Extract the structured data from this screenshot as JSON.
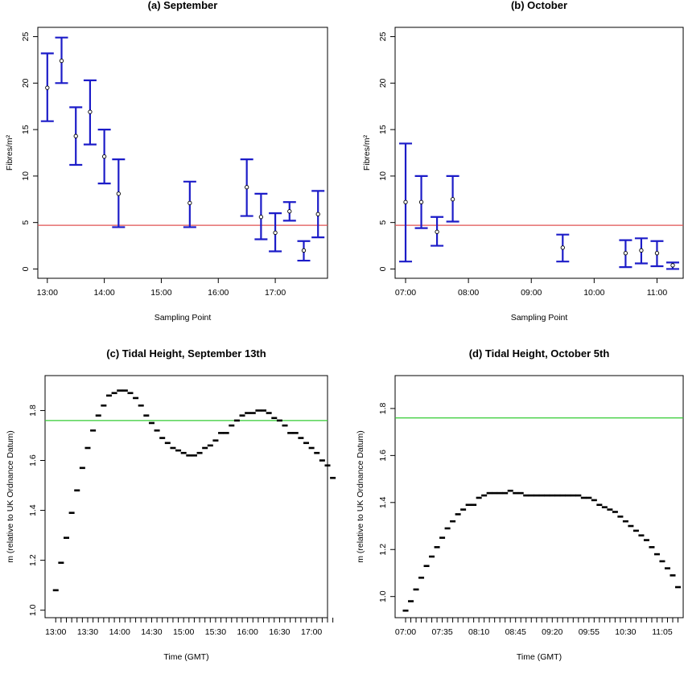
{
  "chart_data": [
    {
      "type": "errorbar",
      "title": "(a) September",
      "xlabel": "Sampling Point",
      "ylabel": "Fibres/m²",
      "xlim": [
        "12:50",
        "17:55"
      ],
      "ylim": [
        -1,
        26
      ],
      "xticks": [
        "13:00",
        "14:00",
        "15:00",
        "16:00",
        "17:00"
      ],
      "yticks": [
        0,
        5,
        10,
        15,
        20,
        25
      ],
      "reference_line": {
        "value": 4.7,
        "color": "#e05252"
      },
      "series_color": "#1c1cc8",
      "points": [
        {
          "x": "13:00",
          "y": 19.5,
          "low": 15.9,
          "high": 23.2
        },
        {
          "x": "13:15",
          "y": 22.4,
          "low": 20.0,
          "high": 24.9
        },
        {
          "x": "13:30",
          "y": 14.3,
          "low": 11.2,
          "high": 17.4
        },
        {
          "x": "13:45",
          "y": 16.9,
          "low": 13.4,
          "high": 20.3
        },
        {
          "x": "14:00",
          "y": 12.1,
          "low": 9.2,
          "high": 15.0
        },
        {
          "x": "14:15",
          "y": 8.1,
          "low": 4.5,
          "high": 11.8
        },
        {
          "x": "15:30",
          "y": 7.1,
          "low": 4.5,
          "high": 9.4
        },
        {
          "x": "16:30",
          "y": 8.8,
          "low": 5.7,
          "high": 11.8
        },
        {
          "x": "16:45",
          "y": 5.6,
          "low": 3.2,
          "high": 8.1
        },
        {
          "x": "17:00",
          "y": 3.9,
          "low": 1.9,
          "high": 6.0
        },
        {
          "x": "17:15",
          "y": 6.2,
          "low": 5.2,
          "high": 7.2
        },
        {
          "x": "17:30",
          "y": 2.0,
          "low": 0.9,
          "high": 3.0
        },
        {
          "x": "17:45",
          "y": 5.9,
          "low": 3.4,
          "high": 8.4
        }
      ]
    },
    {
      "type": "errorbar",
      "title": "(b) October",
      "xlabel": "Sampling Point",
      "ylabel": "Fibres/m²",
      "xlim": [
        "06:50",
        "11:25"
      ],
      "ylim": [
        -1,
        26
      ],
      "xticks": [
        "07:00",
        "08:00",
        "09:00",
        "10:00",
        "11:00"
      ],
      "yticks": [
        0,
        5,
        10,
        15,
        20,
        25
      ],
      "reference_line": {
        "value": 4.7,
        "color": "#e05252"
      },
      "series_color": "#1c1cc8",
      "points": [
        {
          "x": "07:00",
          "y": 7.2,
          "low": 0.8,
          "high": 13.5
        },
        {
          "x": "07:15",
          "y": 7.2,
          "low": 4.4,
          "high": 10.0
        },
        {
          "x": "07:30",
          "y": 4.0,
          "low": 2.5,
          "high": 5.6
        },
        {
          "x": "07:45",
          "y": 7.5,
          "low": 5.1,
          "high": 10.0
        },
        {
          "x": "09:30",
          "y": 2.3,
          "low": 0.8,
          "high": 3.7
        },
        {
          "x": "10:30",
          "y": 1.7,
          "low": 0.2,
          "high": 3.1
        },
        {
          "x": "10:45",
          "y": 2.0,
          "low": 0.6,
          "high": 3.3
        },
        {
          "x": "11:00",
          "y": 1.7,
          "low": 0.3,
          "high": 3.0
        },
        {
          "x": "11:15",
          "y": 0.4,
          "low": 0.0,
          "high": 0.7
        }
      ]
    },
    {
      "type": "scatter",
      "title": "(c) Tidal Height, September 13th",
      "xlabel": "Time (GMT)",
      "ylabel": "m (relative to UK Ordnance Datum)",
      "xlim": [
        "12:50",
        "17:15"
      ],
      "ylim": [
        0.97,
        1.94
      ],
      "xticks": [
        "13:00",
        "13:30",
        "14:00",
        "14:30",
        "15:00",
        "15:30",
        "16:00",
        "16:30",
        "17:00"
      ],
      "minor_tick_minutes": 5,
      "yticks": [
        1.0,
        1.2,
        1.4,
        1.6,
        1.8
      ],
      "reference_line": {
        "value": 1.76,
        "color": "#33cc33"
      },
      "start": "13:00",
      "interval_minutes": 5,
      "values": [
        1.08,
        1.19,
        1.29,
        1.39,
        1.48,
        1.57,
        1.65,
        1.72,
        1.78,
        1.82,
        1.86,
        1.87,
        1.88,
        1.88,
        1.87,
        1.85,
        1.82,
        1.78,
        1.75,
        1.72,
        1.69,
        1.67,
        1.65,
        1.64,
        1.63,
        1.62,
        1.62,
        1.63,
        1.65,
        1.66,
        1.68,
        1.71,
        1.71,
        1.74,
        1.76,
        1.78,
        1.79,
        1.79,
        1.8,
        1.8,
        1.79,
        1.77,
        1.76,
        1.74,
        1.71,
        1.71,
        1.69,
        1.67,
        1.65,
        1.63,
        1.6,
        1.58,
        1.53
      ]
    },
    {
      "type": "scatter",
      "title": "(d) Tidal Height, October 5th",
      "xlabel": "Time (GMT)",
      "ylabel": "m (relative to UK Ordnance Datum)",
      "xlim": [
        "06:50",
        "11:25"
      ],
      "ylim": [
        0.91,
        1.94
      ],
      "xticks": [
        "07:00",
        "07:35",
        "08:10",
        "08:45",
        "09:20",
        "09:55",
        "10:30",
        "11:05"
      ],
      "minor_tick_minutes": 5,
      "yticks": [
        1.0,
        1.2,
        1.4,
        1.6,
        1.8
      ],
      "reference_line": {
        "value": 1.76,
        "color": "#33cc33"
      },
      "start": "07:00",
      "interval_minutes": 5,
      "values": [
        0.94,
        0.98,
        1.03,
        1.08,
        1.13,
        1.17,
        1.21,
        1.25,
        1.29,
        1.32,
        1.35,
        1.37,
        1.39,
        1.39,
        1.42,
        1.43,
        1.44,
        1.44,
        1.44,
        1.44,
        1.45,
        1.44,
        1.44,
        1.43,
        1.43,
        1.43,
        1.43,
        1.43,
        1.43,
        1.43,
        1.43,
        1.43,
        1.43,
        1.43,
        1.42,
        1.42,
        1.41,
        1.39,
        1.38,
        1.37,
        1.36,
        1.34,
        1.32,
        1.3,
        1.28,
        1.26,
        1.24,
        1.21,
        1.18,
        1.15,
        1.12,
        1.09,
        1.04
      ]
    }
  ]
}
